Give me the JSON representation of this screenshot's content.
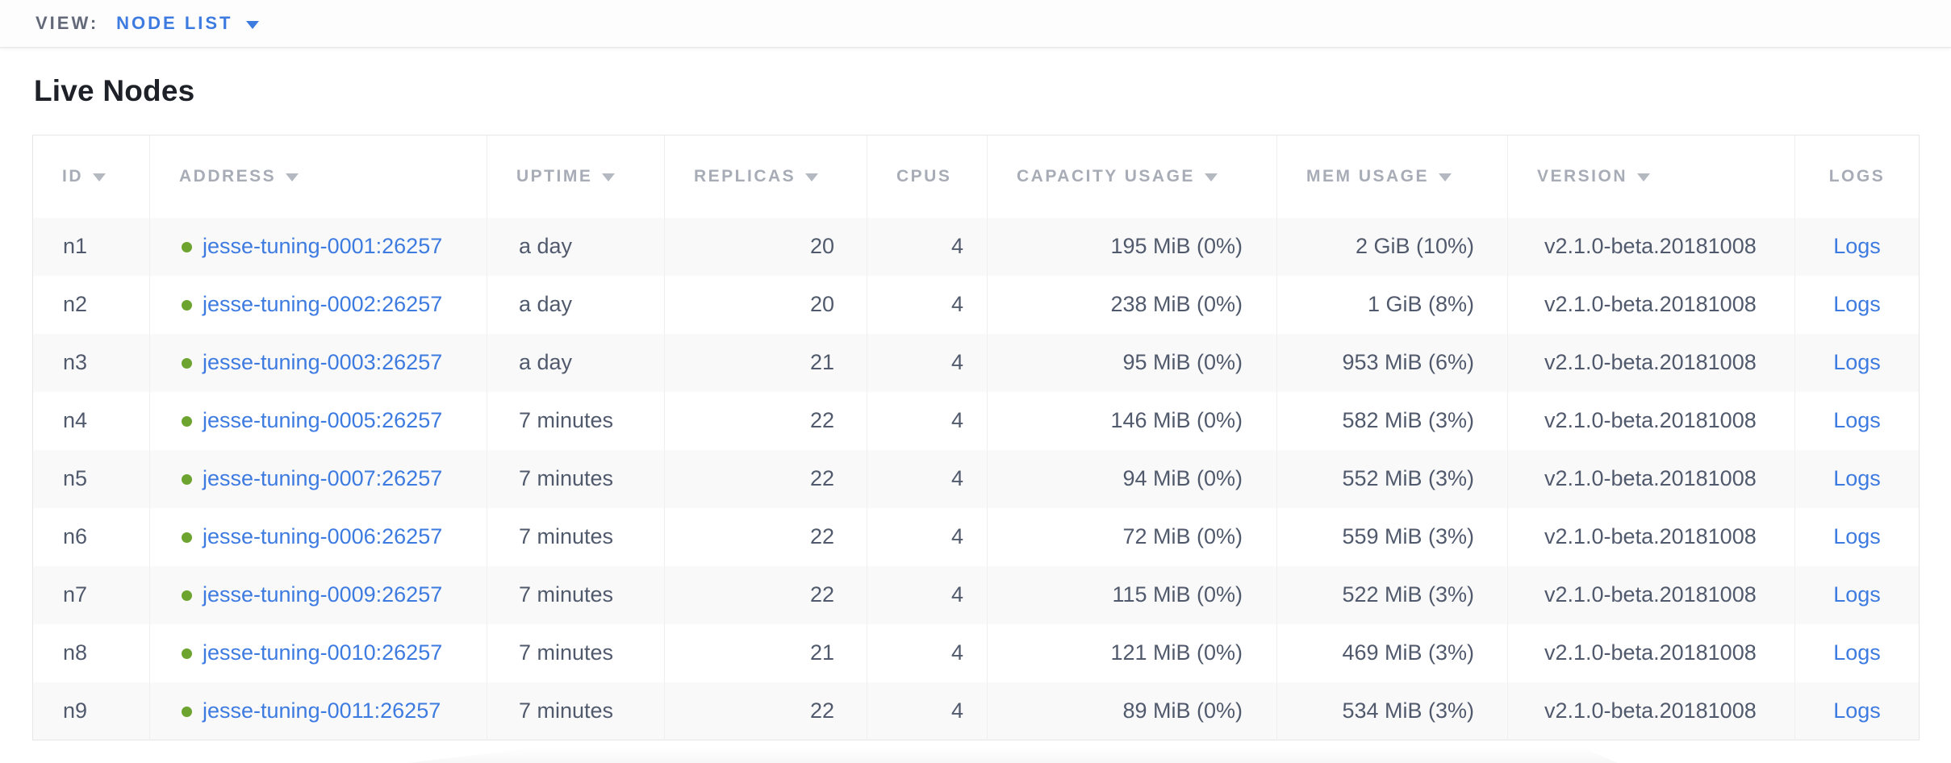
{
  "view_bar": {
    "label": "VIEW:",
    "selected": "NODE LIST"
  },
  "page": {
    "title": "Live Nodes"
  },
  "colors": {
    "accent_blue": "#3d7be0",
    "status_green": "#6da42f",
    "header_gray": "#a7acb6",
    "body_text": "#515a6d"
  },
  "table": {
    "columns": [
      {
        "key": "id",
        "label": "ID",
        "sortable": true
      },
      {
        "key": "address",
        "label": "ADDRESS",
        "sortable": true
      },
      {
        "key": "uptime",
        "label": "UPTIME",
        "sortable": true
      },
      {
        "key": "replicas",
        "label": "REPLICAS",
        "sortable": true
      },
      {
        "key": "cpus",
        "label": "CPUS",
        "sortable": false
      },
      {
        "key": "capacity",
        "label": "CAPACITY USAGE",
        "sortable": true
      },
      {
        "key": "mem",
        "label": "MEM USAGE",
        "sortable": true
      },
      {
        "key": "version",
        "label": "VERSION",
        "sortable": true
      },
      {
        "key": "logs",
        "label": "LOGS",
        "sortable": false
      }
    ],
    "rows": [
      {
        "id": "n1",
        "address": "jesse-tuning-0001:26257",
        "uptime": "a day",
        "replicas": "20",
        "cpus": "4",
        "capacity": "195 MiB (0%)",
        "mem": "2 GiB (10%)",
        "version": "v2.1.0-beta.20181008",
        "logs": "Logs"
      },
      {
        "id": "n2",
        "address": "jesse-tuning-0002:26257",
        "uptime": "a day",
        "replicas": "20",
        "cpus": "4",
        "capacity": "238 MiB (0%)",
        "mem": "1 GiB (8%)",
        "version": "v2.1.0-beta.20181008",
        "logs": "Logs"
      },
      {
        "id": "n3",
        "address": "jesse-tuning-0003:26257",
        "uptime": "a day",
        "replicas": "21",
        "cpus": "4",
        "capacity": "95 MiB (0%)",
        "mem": "953 MiB (6%)",
        "version": "v2.1.0-beta.20181008",
        "logs": "Logs"
      },
      {
        "id": "n4",
        "address": "jesse-tuning-0005:26257",
        "uptime": "7 minutes",
        "replicas": "22",
        "cpus": "4",
        "capacity": "146 MiB (0%)",
        "mem": "582 MiB (3%)",
        "version": "v2.1.0-beta.20181008",
        "logs": "Logs"
      },
      {
        "id": "n5",
        "address": "jesse-tuning-0007:26257",
        "uptime": "7 minutes",
        "replicas": "22",
        "cpus": "4",
        "capacity": "94 MiB (0%)",
        "mem": "552 MiB (3%)",
        "version": "v2.1.0-beta.20181008",
        "logs": "Logs"
      },
      {
        "id": "n6",
        "address": "jesse-tuning-0006:26257",
        "uptime": "7 minutes",
        "replicas": "22",
        "cpus": "4",
        "capacity": "72 MiB (0%)",
        "mem": "559 MiB (3%)",
        "version": "v2.1.0-beta.20181008",
        "logs": "Logs"
      },
      {
        "id": "n7",
        "address": "jesse-tuning-0009:26257",
        "uptime": "7 minutes",
        "replicas": "22",
        "cpus": "4",
        "capacity": "115 MiB (0%)",
        "mem": "522 MiB (3%)",
        "version": "v2.1.0-beta.20181008",
        "logs": "Logs"
      },
      {
        "id": "n8",
        "address": "jesse-tuning-0010:26257",
        "uptime": "7 minutes",
        "replicas": "21",
        "cpus": "4",
        "capacity": "121 MiB (0%)",
        "mem": "469 MiB (3%)",
        "version": "v2.1.0-beta.20181008",
        "logs": "Logs"
      },
      {
        "id": "n9",
        "address": "jesse-tuning-0011:26257",
        "uptime": "7 minutes",
        "replicas": "22",
        "cpus": "4",
        "capacity": "89 MiB (0%)",
        "mem": "534 MiB (3%)",
        "version": "v2.1.0-beta.20181008",
        "logs": "Logs"
      }
    ]
  }
}
